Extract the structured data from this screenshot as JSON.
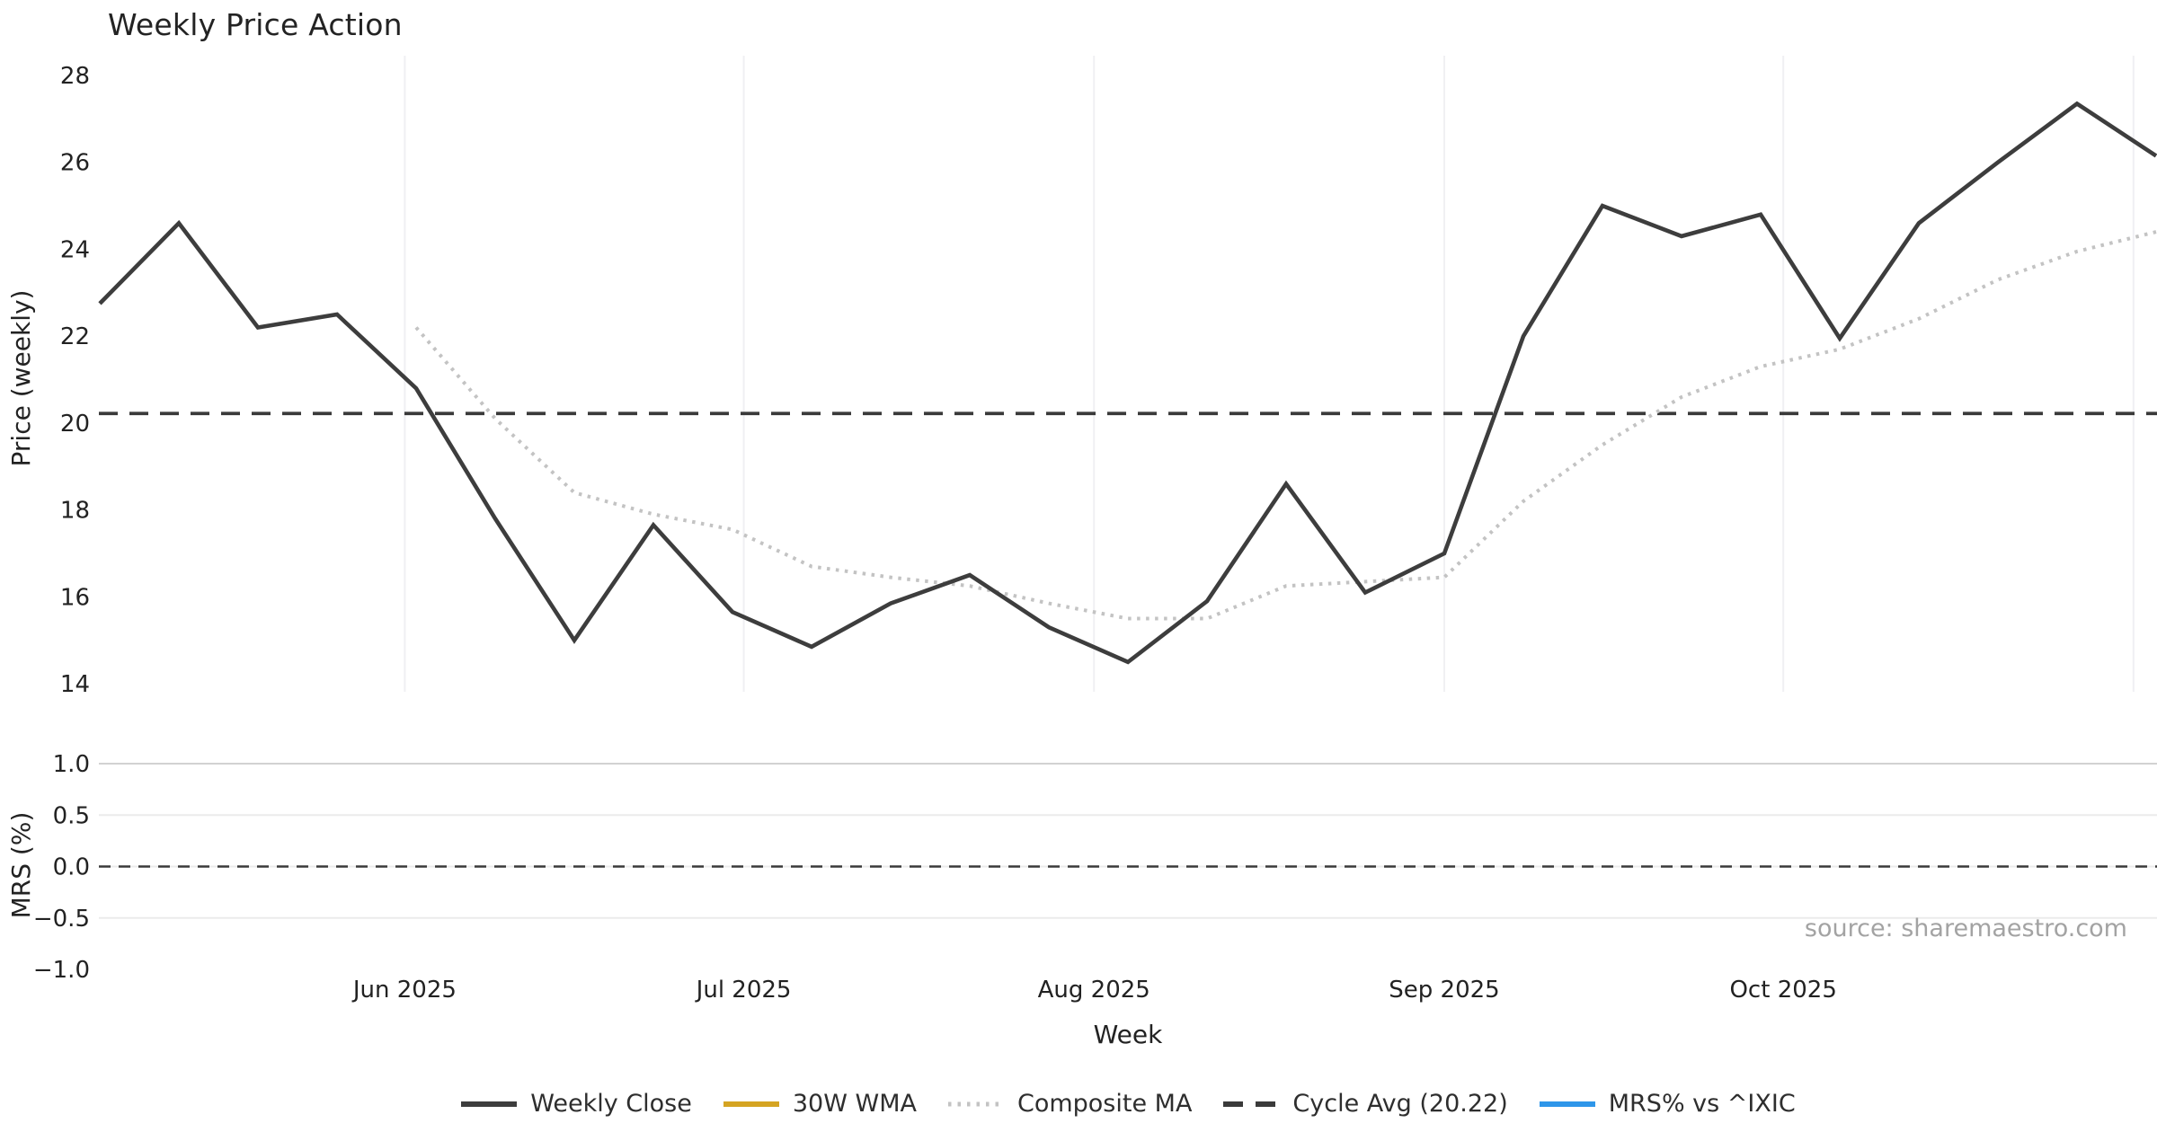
{
  "title": "Weekly Price Action",
  "source_note": "source: sharemaestro.com",
  "colors": {
    "background": "#ffffff",
    "close_line": "#3d3d3d",
    "wma_line": "#d5a422",
    "composite_ma_line": "#c3c3c3",
    "cycle_avg_line": "#3a3a3a",
    "mrs_line": "#2e96e9",
    "price_vgrid": "#f0f0f3",
    "mrs_hgrid": "#ebebeb",
    "mrs_hgrid_top": "#d2d2d2",
    "tick_text": "#222222",
    "source_text": "#a3a3a3"
  },
  "legend": [
    {
      "label": "Weekly Close",
      "color": "#3d3d3d",
      "style": "solid"
    },
    {
      "label": "30W WMA",
      "color": "#d5a422",
      "style": "solid"
    },
    {
      "label": "Composite MA",
      "color": "#c3c3c3",
      "style": "dotted"
    },
    {
      "label": "Cycle Avg (20.22)",
      "color": "#3a3a3a",
      "style": "dashed"
    },
    {
      "label": "MRS% vs ^IXIC",
      "color": "#2e96e9",
      "style": "solid"
    }
  ],
  "chart_data": [
    {
      "type": "line",
      "panel": "price",
      "title": "Weekly Price Action",
      "xlabel": "Week",
      "ylabel": "Price (weekly)",
      "x_unit": "week_index (weekly bars, May 2025 → Nov 2025)",
      "x": [
        0,
        1,
        2,
        3,
        4,
        5,
        6,
        7,
        8,
        9,
        10,
        11,
        12,
        13,
        14,
        15,
        16,
        17,
        18,
        19,
        20,
        21,
        22,
        23,
        24,
        25,
        26
      ],
      "series": [
        {
          "name": "Weekly Close",
          "style": "solid",
          "color": "#3d3d3d",
          "values": [
            22.75,
            24.6,
            22.2,
            22.5,
            20.8,
            17.8,
            15.0,
            17.65,
            15.65,
            14.85,
            15.85,
            16.5,
            15.3,
            14.5,
            15.9,
            18.6,
            16.1,
            17.0,
            22.0,
            25.0,
            24.3,
            24.8,
            21.95,
            24.6,
            26.0,
            27.35,
            26.15
          ]
        },
        {
          "name": "30W WMA",
          "style": "solid",
          "color": "#d5a422",
          "values": []
        },
        {
          "name": "Composite MA",
          "style": "dotted",
          "color": "#c3c3c3",
          "values": [
            null,
            null,
            null,
            null,
            22.2,
            20.1,
            18.4,
            17.9,
            17.55,
            16.7,
            16.45,
            16.25,
            15.85,
            15.5,
            15.5,
            16.25,
            16.35,
            16.45,
            18.2,
            19.5,
            20.6,
            21.3,
            21.7,
            22.4,
            23.3,
            23.95,
            24.4
          ]
        },
        {
          "name": "Cycle Avg (20.22)",
          "style": "dashed",
          "color": "#3a3a3a",
          "constant": 20.22
        }
      ],
      "ylim": [
        13.8,
        28.45
      ],
      "yticks": [
        28,
        26,
        24,
        22,
        20,
        18,
        16,
        14
      ],
      "ytick_labels": [
        "28",
        "26",
        "24",
        "22",
        "20",
        "18",
        "16",
        "14"
      ],
      "xticks": [
        {
          "label": "Jun 2025",
          "week": 3.857
        },
        {
          "label": "Jul 2025",
          "week": 8.143
        },
        {
          "label": "Aug 2025",
          "week": 12.571
        },
        {
          "label": "Sep 2025",
          "week": 17.0
        },
        {
          "label": "Oct 2025",
          "week": 21.286
        },
        {
          "label": "",
          "week": 25.714
        }
      ],
      "grid": "vertical-month-lines-only",
      "legend_position": "bottom-center"
    },
    {
      "type": "line",
      "panel": "mrs",
      "xlabel": "Week",
      "ylabel": "MRS (%)",
      "series": [
        {
          "name": "MRS% vs ^IXIC",
          "style": "solid",
          "color": "#2e96e9",
          "values": []
        }
      ],
      "zero_line": 0.0,
      "ylim": [
        -1.05,
        1.05
      ],
      "yticks": [
        1.0,
        0.5,
        0.0,
        -0.5,
        -1.0
      ],
      "ytick_labels": [
        "1.0",
        "0.5",
        "0.0",
        "−0.5",
        "−1.0"
      ],
      "grid": "horizontal-lines-only"
    }
  ]
}
